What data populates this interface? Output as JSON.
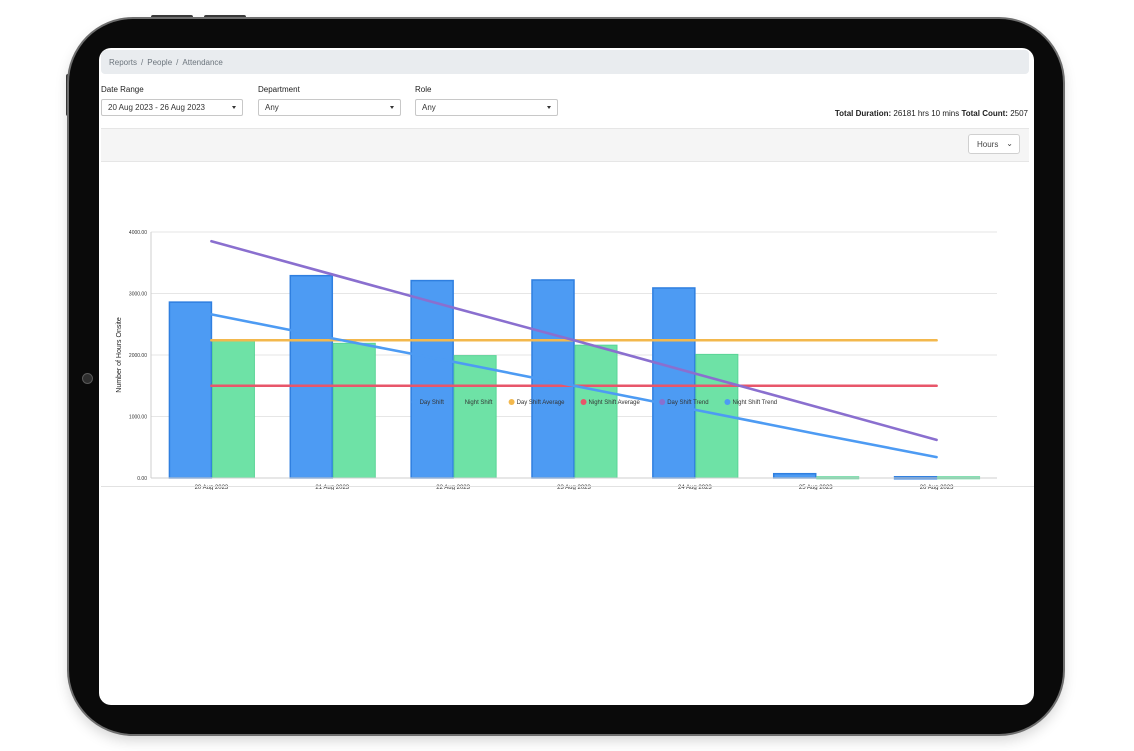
{
  "breadcrumb": [
    "Reports",
    "People",
    "Attendance"
  ],
  "filters": {
    "date_range_label": "Date Range",
    "date_range_value": "20 Aug 2023 - 26 Aug 2023",
    "department_label": "Department",
    "department_value": "Any",
    "role_label": "Role",
    "role_value": "Any"
  },
  "totals": {
    "duration_label": "Total Duration:",
    "duration_value": "26181 hrs 10 mins",
    "count_label": "Total Count:",
    "count_value": "2507"
  },
  "units_select": "Hours",
  "chart_data": {
    "type": "bar",
    "ylabel": "Number of Hours Onsite",
    "ylim": [
      0,
      4000
    ],
    "yticks": [
      "0.00",
      "1000.00",
      "2000.00",
      "3000.00",
      "4000.00"
    ],
    "categories": [
      "20 Aug 2023",
      "21 Aug 2023",
      "22 Aug 2023",
      "23 Aug 2023",
      "24 Aug 2023",
      "25 Aug 2023",
      "26 Aug 2023"
    ],
    "series": [
      {
        "name": "Day Shift",
        "kind": "bar",
        "color": "#4d9bf3",
        "values": [
          2860,
          3290,
          3210,
          3220,
          3090,
          70,
          20
        ]
      },
      {
        "name": "Night Shift",
        "kind": "bar",
        "color": "#6ee2a6",
        "values": [
          2230,
          2190,
          1990,
          2160,
          2010,
          20,
          20
        ]
      }
    ],
    "lines": [
      {
        "name": "Day Shift Average",
        "color": "#f3b84d",
        "values": [
          2240,
          2240,
          2240,
          2240,
          2240,
          2240,
          2240
        ]
      },
      {
        "name": "Night Shift Average",
        "color": "#e8566a",
        "values": [
          1500,
          1500,
          1500,
          1500,
          1500,
          1500,
          1500
        ]
      },
      {
        "name": "Day Shift Trend",
        "color": "#8a6fcf",
        "values": [
          3850,
          3310,
          2770,
          2240,
          1700,
          1160,
          620
        ]
      },
      {
        "name": "Night Shift Trend",
        "color": "#4d9bf3",
        "values": [
          2660,
          2270,
          1890,
          1500,
          1110,
          720,
          340
        ]
      }
    ],
    "legend_position": "bottom",
    "grid": true
  }
}
